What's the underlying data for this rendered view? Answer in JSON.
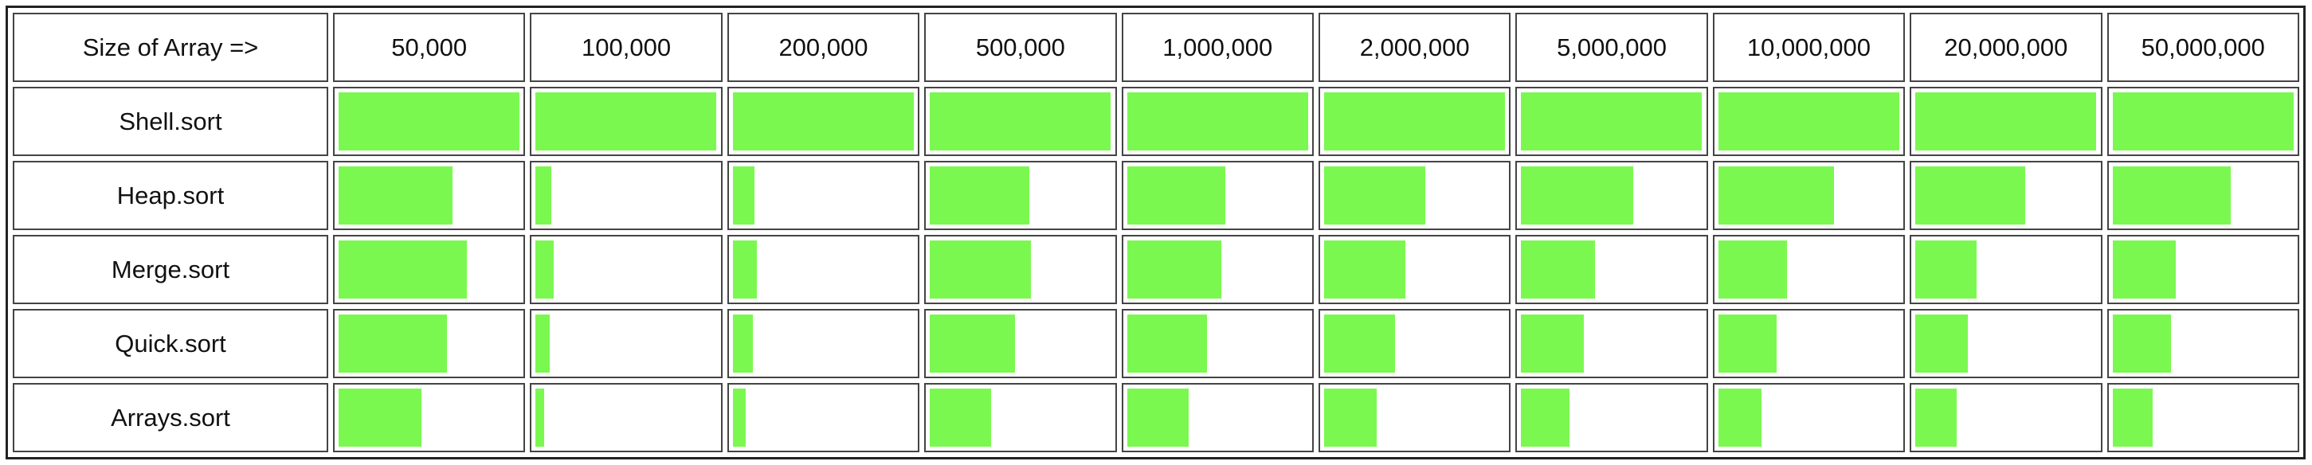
{
  "chart_data": {
    "type": "table",
    "corner_label": "Size of Array =>",
    "categories": [
      "50,000",
      "100,000",
      "200,000",
      "500,000",
      "1,000,000",
      "2,000,000",
      "5,000,000",
      "10,000,000",
      "20,000,000",
      "50,000,000"
    ],
    "series": [
      {
        "name": "Shell.sort",
        "values": [
          1.0,
          1.0,
          1.0,
          1.0,
          1.0,
          1.0,
          1.0,
          1.0,
          1.0,
          1.0
        ]
      },
      {
        "name": "Heap.sort",
        "values": [
          0.63,
          0.09,
          0.12,
          0.55,
          0.54,
          0.56,
          0.62,
          0.64,
          0.61,
          0.65
        ]
      },
      {
        "name": "Merge.sort",
        "values": [
          0.71,
          0.1,
          0.13,
          0.56,
          0.52,
          0.45,
          0.41,
          0.38,
          0.34,
          0.35
        ]
      },
      {
        "name": "Quick.sort",
        "values": [
          0.6,
          0.08,
          0.11,
          0.47,
          0.44,
          0.39,
          0.35,
          0.32,
          0.29,
          0.32
        ]
      },
      {
        "name": "Arrays.sort",
        "values": [
          0.46,
          0.05,
          0.07,
          0.34,
          0.34,
          0.29,
          0.27,
          0.24,
          0.23,
          0.22
        ]
      }
    ],
    "ylim": [
      0,
      1
    ]
  },
  "colors": {
    "bar": "#7af850",
    "border": "#444444"
  }
}
